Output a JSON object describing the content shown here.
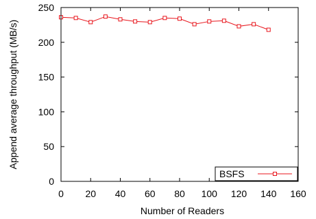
{
  "chart_data": {
    "type": "line",
    "title": "",
    "xlabel": "Number of Readers",
    "ylabel": "Append average throughput (MB/s)",
    "xlim": [
      0,
      160
    ],
    "ylim": [
      0,
      250
    ],
    "xticks": [
      0,
      20,
      40,
      60,
      80,
      100,
      120,
      140,
      160
    ],
    "yticks": [
      0,
      50,
      100,
      150,
      200,
      250
    ],
    "grid": false,
    "legend_position": "bottom-right",
    "series": [
      {
        "name": "BSFS",
        "color": "#e8141b",
        "marker": "square",
        "x": [
          0,
          10,
          20,
          30,
          40,
          50,
          60,
          70,
          80,
          90,
          100,
          110,
          120,
          130,
          140
        ],
        "y": [
          236,
          235,
          229,
          237,
          233,
          230,
          229,
          235,
          234,
          226,
          230,
          231,
          223,
          226,
          218
        ]
      }
    ]
  }
}
